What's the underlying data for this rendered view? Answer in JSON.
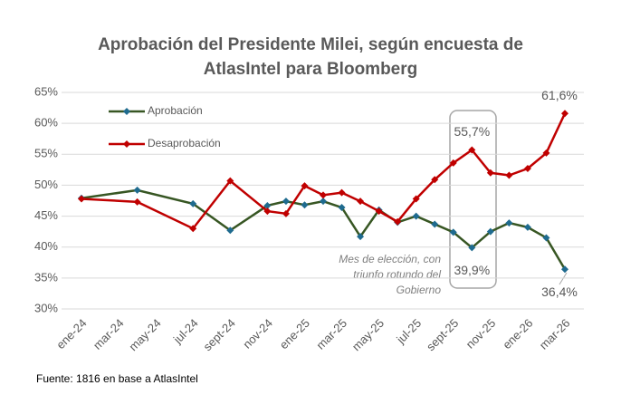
{
  "chart_data": {
    "type": "line",
    "title": [
      "Aprobación del Presidente Milei, según encuesta de",
      "AtlasIntel para Bloomberg"
    ],
    "categories": [
      "ene-24",
      null,
      "mar-24",
      null,
      "may-24",
      null,
      "jul-24",
      null,
      "sept-24",
      null,
      "nov-24",
      null,
      "ene-25",
      null,
      "mar-25",
      null,
      "may-25",
      null,
      "jul-25",
      null,
      "sept-25",
      null,
      "nov-25",
      null,
      "ene-26",
      null,
      "mar-26"
    ],
    "series": [
      {
        "name": "Aprobación",
        "color": "#375623",
        "marker_color": "#1f6b8f",
        "values": [
          47.9,
          null,
          null,
          49.2,
          null,
          null,
          47.0,
          null,
          42.7,
          null,
          46.7,
          47.4,
          46.8,
          47.4,
          46.4,
          41.7,
          46.0,
          44.0,
          45.0,
          43.7,
          42.4,
          39.9,
          42.5,
          43.9,
          43.2,
          41.5,
          36.4
        ],
        "value_labels": [
          null,
          null,
          null,
          null,
          null,
          null,
          null,
          null,
          null,
          null,
          null,
          null,
          null,
          null,
          null,
          null,
          null,
          null,
          null,
          null,
          null,
          "39,9%",
          null,
          null,
          null,
          null,
          "36,4%"
        ]
      },
      {
        "name": "Desaprobación",
        "color": "#c00000",
        "marker_color": "#c00000",
        "values": [
          47.8,
          null,
          null,
          47.3,
          null,
          null,
          43.0,
          null,
          50.7,
          null,
          45.8,
          45.4,
          49.9,
          48.4,
          48.8,
          47.4,
          45.8,
          44.1,
          47.8,
          50.9,
          53.6,
          55.7,
          52.0,
          51.6,
          52.7,
          55.2,
          61.6
        ],
        "value_labels": [
          null,
          null,
          null,
          null,
          null,
          null,
          null,
          null,
          null,
          null,
          null,
          null,
          null,
          null,
          null,
          null,
          null,
          null,
          null,
          null,
          null,
          "55,7%",
          null,
          null,
          null,
          null,
          "61,6%"
        ]
      }
    ],
    "span_gaps": true,
    "ylim": [
      30,
      65
    ],
    "yticks": [
      {
        "value": 30,
        "label": "30%"
      },
      {
        "value": 35,
        "label": "35%"
      },
      {
        "value": 40,
        "label": "40%"
      },
      {
        "value": 45,
        "label": "45%"
      },
      {
        "value": 50,
        "label": "50%"
      },
      {
        "value": 55,
        "label": "55%"
      },
      {
        "value": 60,
        "label": "60%"
      },
      {
        "value": 65,
        "label": "65%"
      }
    ],
    "grid": true,
    "legend": "top-left",
    "annotation": [
      "Mes de elección, con",
      "triunfo rotundo del",
      "Gobierno"
    ],
    "source": "Fuente: 1816 en base a AtlasIntel"
  }
}
